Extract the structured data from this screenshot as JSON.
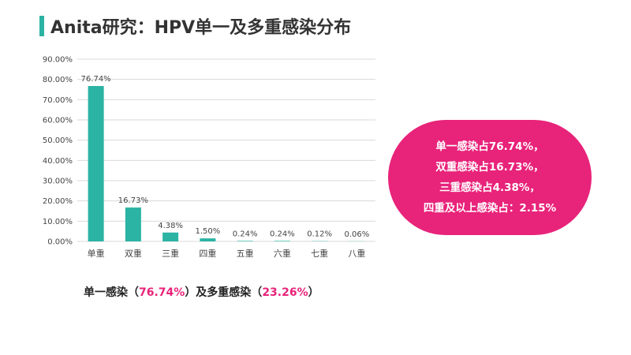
{
  "header": {
    "title": "Anita研究：HPV单一及多重感染分布"
  },
  "chart_data": {
    "type": "bar",
    "categories": [
      "单重",
      "双重",
      "三重",
      "四重",
      "五重",
      "六重",
      "七重",
      "八重"
    ],
    "values": [
      76.74,
      16.73,
      4.38,
      1.5,
      0.24,
      0.24,
      0.12,
      0.06
    ],
    "value_labels": [
      "76.74%",
      "16.73%",
      "4.38%",
      "1.50%",
      "0.24%",
      "0.24%",
      "0.12%",
      "0.06%"
    ],
    "yticks": [
      "0.00%",
      "10.00%",
      "20.00%",
      "30.00%",
      "40.00%",
      "50.00%",
      "60.00%",
      "70.00%",
      "80.00%",
      "90.00%"
    ],
    "ylim": [
      0,
      90
    ],
    "grid": true,
    "bar_color": "#2bb3a3"
  },
  "callout": {
    "lines": [
      "单一感染占76.74%，",
      "双重感染占16.73%，",
      "三重感染占4.38%，",
      "四重及以上感染占：2.15%"
    ],
    "color": "#e8237a"
  },
  "summary": {
    "part1": "单一感染（",
    "single": "76.74%",
    "part2": "）及多重感染（",
    "multi": "23.26%",
    "part3": "）"
  }
}
